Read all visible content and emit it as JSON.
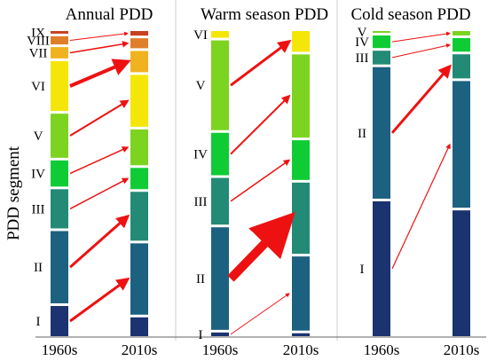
{
  "chart_data": {
    "type": "stacked-bar-flow",
    "ylabel": "PDD segment",
    "segments": [
      "I",
      "II",
      "III",
      "IV",
      "V",
      "VI",
      "VII",
      "VIII",
      "IX"
    ],
    "colors": {
      "I": "#1b3370",
      "II": "#1c6180",
      "III": "#238a76",
      "IV": "#0fcc35",
      "V": "#7cd320",
      "VI": "#f5e60a",
      "VII": "#f0b320",
      "VIII": "#e07f2a",
      "IX": "#c8401f",
      "arrow": "#ee1111"
    },
    "panels": [
      {
        "title": "Annual PDD",
        "bars": [
          {
            "label": "1960s",
            "segments": {
              "I": 0.104,
              "II": 0.249,
              "III": 0.135,
              "IV": 0.09,
              "V": 0.152,
              "VI": 0.172,
              "VII": 0.039,
              "VIII": 0.028,
              "IX": 0.009
            }
          },
          {
            "label": "2010s",
            "segments": {
              "I": 0.062,
              "II": 0.235,
              "III": 0.161,
              "IV": 0.07,
              "V": 0.118,
              "VI": 0.171,
              "VII": 0.07,
              "VIII": 0.033,
              "IX": 0.015
            }
          }
        ],
        "flows": [
          {
            "from": "I",
            "to": "II",
            "weight": 3
          },
          {
            "from": "II",
            "to": "III",
            "weight": 3
          },
          {
            "from": "III",
            "to": "IV",
            "weight": 1.5
          },
          {
            "from": "IV",
            "to": "V",
            "weight": 1.5
          },
          {
            "from": "V",
            "to": "VI",
            "weight": 2
          },
          {
            "from": "VI",
            "to": "VII",
            "weight": 4
          },
          {
            "from": "VII",
            "to": "VIII",
            "weight": 1.5
          },
          {
            "from": "VIII",
            "to": "IX",
            "weight": 1
          }
        ]
      },
      {
        "title": "Warm season PDD",
        "bars": [
          {
            "label": "1960s",
            "segments": {
              "I": 0.012,
              "II": 0.336,
              "III": 0.153,
              "IV": 0.139,
              "V": 0.294,
              "VI": 0.022
            }
          },
          {
            "label": "2010s",
            "segments": {
              "I": 0.01,
              "II": 0.254,
              "III": 0.244,
              "IV": 0.136,
              "V": 0.285,
              "VI": 0.071
            }
          }
        ],
        "flows": [
          {
            "from": "I",
            "to": "II",
            "weight": 1
          },
          {
            "from": "II",
            "to": "III",
            "weight": 10
          },
          {
            "from": "III",
            "to": "IV",
            "weight": 1.5
          },
          {
            "from": "IV",
            "to": "V",
            "weight": 2
          },
          {
            "from": "V",
            "to": "VI",
            "weight": 3
          }
        ]
      },
      {
        "title": "Cold season PDD",
        "bars": [
          {
            "label": "1960s",
            "segments": {
              "II": 0.44,
              "I": 0.451,
              "III": 0.046,
              "IV": 0.042,
              "V": 0.006
            }
          },
          {
            "label": "2010s",
            "segments": {
              "I": 0.428,
              "II": 0.431,
              "III": 0.082,
              "IV": 0.046,
              "V": 0.015
            }
          }
        ],
        "flows": [
          {
            "from": "I",
            "to": "II",
            "weight": 1.2
          },
          {
            "from": "II",
            "to": "III",
            "weight": 3
          },
          {
            "from": "III",
            "to": "IV",
            "weight": 1
          },
          {
            "from": "IV",
            "to": "V",
            "weight": 1
          }
        ]
      }
    ]
  }
}
